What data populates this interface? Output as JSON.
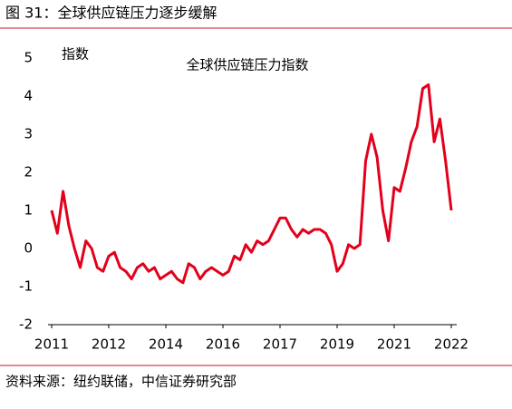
{
  "chart_data": {
    "type": "line",
    "title": "图 31：全球供应链压力逐步缓解",
    "subtitle": "全球供应链压力指数",
    "y_label": "指数",
    "source": "资料来源：纽约联储，中信证券研究部",
    "categories": [
      "2011",
      null,
      null,
      null,
      null,
      null,
      null,
      null,
      null,
      null,
      "2012",
      null,
      null,
      null,
      null,
      null,
      null,
      null,
      null,
      null,
      "2014",
      null,
      null,
      null,
      null,
      null,
      null,
      null,
      null,
      null,
      "2016",
      null,
      null,
      null,
      null,
      null,
      null,
      null,
      null,
      null,
      "2017",
      null,
      null,
      null,
      null,
      null,
      null,
      null,
      null,
      null,
      "2019",
      null,
      null,
      null,
      null,
      null,
      null,
      null,
      null,
      null,
      "2021",
      null,
      null,
      null,
      null,
      null,
      null,
      null,
      null,
      null,
      "2022"
    ],
    "series": [
      {
        "name": "全球供应链压力指数",
        "color": "#e3001b",
        "values": [
          1.0,
          0.4,
          1.5,
          0.6,
          0.0,
          -0.5,
          0.2,
          0.0,
          -0.5,
          -0.6,
          -0.2,
          -0.1,
          -0.5,
          -0.6,
          -0.8,
          -0.5,
          -0.4,
          -0.6,
          -0.5,
          -0.8,
          -0.7,
          -0.6,
          -0.8,
          -0.9,
          -0.4,
          -0.5,
          -0.8,
          -0.6,
          -0.5,
          -0.6,
          -0.7,
          -0.6,
          -0.2,
          -0.3,
          0.1,
          -0.1,
          0.2,
          0.1,
          0.2,
          0.5,
          0.8,
          0.8,
          0.5,
          0.3,
          0.5,
          0.4,
          0.5,
          0.5,
          0.4,
          0.1,
          -0.6,
          -0.4,
          0.1,
          0.0,
          0.1,
          2.3,
          3.0,
          2.4,
          1.0,
          0.2,
          1.6,
          1.5,
          2.1,
          2.8,
          3.2,
          4.2,
          4.3,
          2.8,
          3.4,
          2.3,
          1.0
        ]
      }
    ],
    "ylim": [
      -2,
      5
    ],
    "yticks": [
      -2,
      -1,
      0,
      1,
      2,
      3,
      4,
      5
    ],
    "grid": false
  }
}
